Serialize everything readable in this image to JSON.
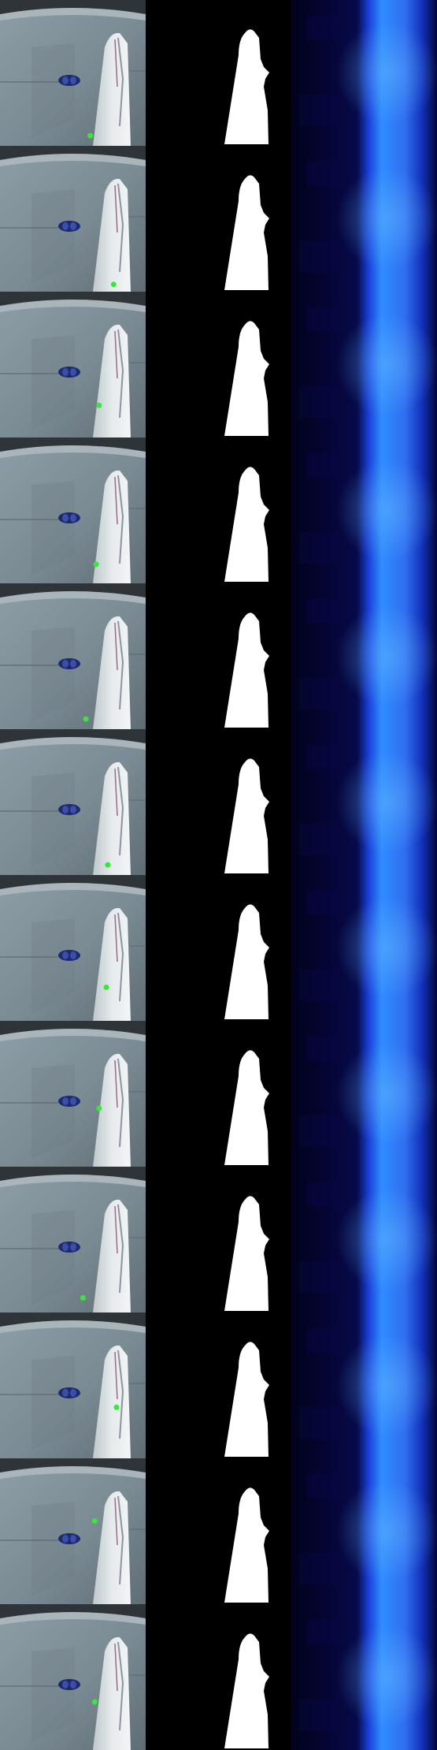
{
  "grid": {
    "frames": [
      {
        "point": [
          0.62,
          0.93
        ]
      },
      {
        "point": [
          0.78,
          0.95
        ]
      },
      {
        "point": [
          0.68,
          0.78
        ]
      },
      {
        "point": [
          0.66,
          0.87
        ]
      },
      {
        "point": [
          0.59,
          0.93
        ]
      },
      {
        "point": [
          0.74,
          0.93
        ]
      },
      {
        "point": [
          0.73,
          0.77
        ]
      },
      {
        "point": [
          0.68,
          0.6
        ]
      },
      {
        "point": [
          0.57,
          0.9
        ]
      },
      {
        "point": [
          0.8,
          0.65
        ]
      },
      {
        "point": [
          0.65,
          0.43
        ]
      },
      {
        "point": [
          0.65,
          0.67
        ]
      }
    ],
    "colors": {
      "point": "#35e83a",
      "mask": "#ffffff",
      "background": "#000000",
      "heat_low": "#050535",
      "heat_high": "#2f8dff"
    }
  }
}
